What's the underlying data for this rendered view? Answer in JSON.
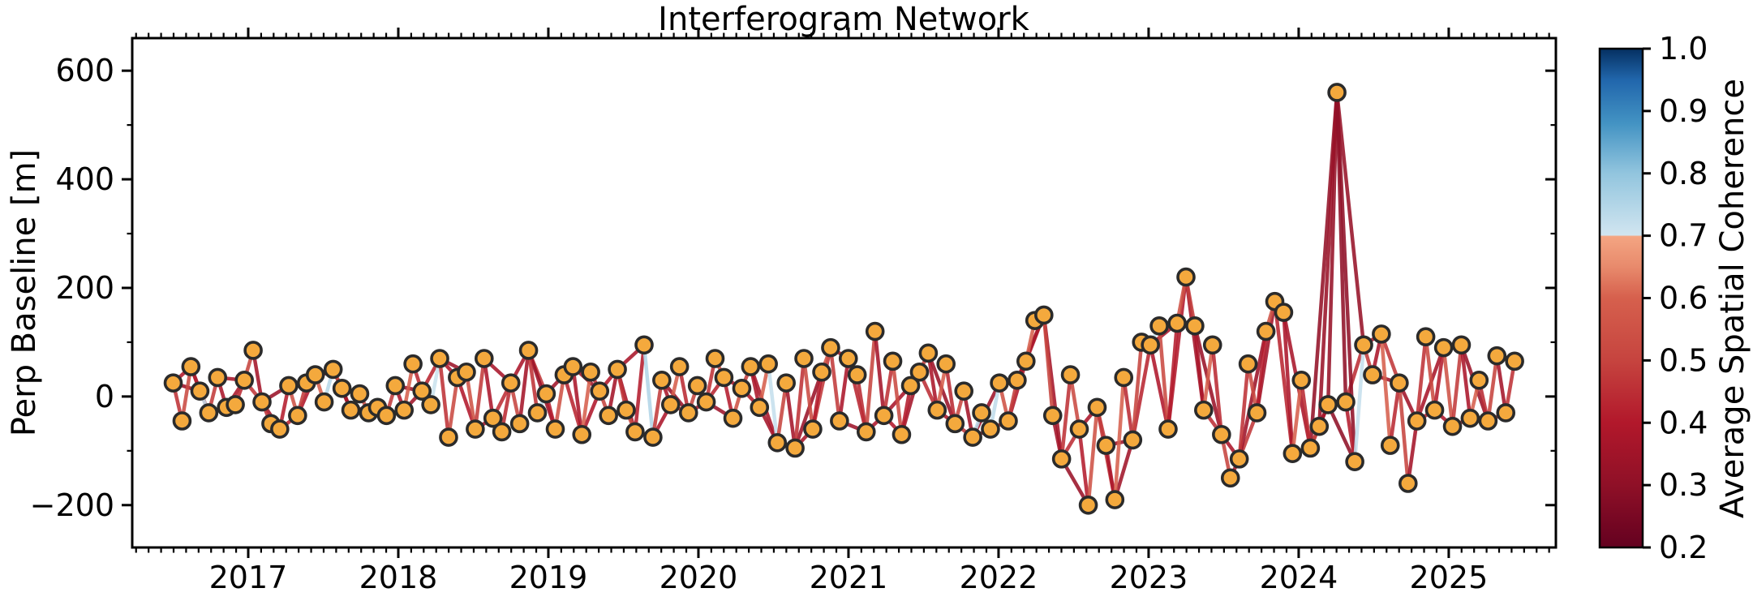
{
  "figure": {
    "title": "Interferogram Network",
    "background": "#ffffff"
  },
  "axes": {
    "ylabel": "Perp Baseline [m]",
    "yticks": {
      "values": [
        -200,
        0,
        200,
        400,
        600
      ],
      "labels": [
        "−200",
        "0",
        "200",
        "400",
        "600"
      ]
    },
    "xticks": {
      "values": [
        2017,
        2018,
        2019,
        2020,
        2021,
        2022,
        2023,
        2024,
        2025
      ],
      "labels": [
        "2017",
        "2018",
        "2019",
        "2020",
        "2021",
        "2022",
        "2023",
        "2024",
        "2025"
      ]
    }
  },
  "colorbar": {
    "label": "Average Spatial Coherence",
    "vmin": 0.2,
    "vmax": 1.0,
    "ticks": {
      "values": [
        0.2,
        0.3,
        0.4,
        0.5,
        0.6,
        0.7,
        0.8,
        0.9,
        1.0
      ],
      "labels": [
        "0.2",
        "0.3",
        "0.4",
        "0.5",
        "0.6",
        "0.7",
        "0.8",
        "0.9",
        "1.0"
      ]
    }
  },
  "chart_data": {
    "type": "scatter",
    "subtype": "interferogram-network",
    "title": "Interferogram Network",
    "xlabel": "",
    "ylabel": "Perp Baseline [m]",
    "xlim": [
      2016.227,
      2025.714
    ],
    "ylim": [
      -278,
      660
    ],
    "minor_x_interval_years": 0.08333,
    "minor_y_interval_m": 100,
    "grid": false,
    "legend": "colorbar-right",
    "marker": {
      "fill": "#F4A93D",
      "stroke": "#2B2B2B"
    },
    "colormap_stops": [
      [
        0.2,
        "#640120"
      ],
      [
        0.3,
        "#8F1027"
      ],
      [
        0.4,
        "#B2182B"
      ],
      [
        0.5,
        "#C6443F"
      ],
      [
        0.6,
        "#D6604D"
      ],
      [
        0.65,
        "#E88A6C"
      ],
      [
        0.699,
        "#F4A582"
      ],
      [
        0.701,
        "#D1E5F0"
      ],
      [
        0.8,
        "#92C5DE"
      ],
      [
        0.88,
        "#4393C3"
      ],
      [
        0.95,
        "#2166AC"
      ],
      [
        1.0,
        "#053061"
      ]
    ],
    "x": [
      2016.5,
      2016.559,
      2016.618,
      2016.678,
      2016.737,
      2016.796,
      2016.855,
      2016.914,
      2016.974,
      2017.033,
      2017.092,
      2017.151,
      2017.21,
      2017.27,
      2017.329,
      2017.388,
      2017.447,
      2017.506,
      2017.566,
      2017.625,
      2017.684,
      2017.743,
      2017.802,
      2017.862,
      2017.921,
      2017.98,
      2018.039,
      2018.098,
      2018.158,
      2018.217,
      2018.276,
      2018.335,
      2018.394,
      2018.454,
      2018.513,
      2018.572,
      2018.631,
      2018.69,
      2018.75,
      2018.809,
      2018.868,
      2018.927,
      2018.986,
      2019.046,
      2019.105,
      2019.164,
      2019.223,
      2019.282,
      2019.342,
      2019.401,
      2019.46,
      2019.519,
      2019.578,
      2019.638,
      2019.697,
      2019.756,
      2019.815,
      2019.874,
      2019.934,
      2019.993,
      2020.052,
      2020.111,
      2020.17,
      2020.23,
      2020.289,
      2020.348,
      2020.407,
      2020.466,
      2020.526,
      2020.585,
      2020.644,
      2020.703,
      2020.762,
      2020.822,
      2020.881,
      2020.94,
      2020.999,
      2021.058,
      2021.118,
      2021.177,
      2021.236,
      2021.295,
      2021.354,
      2021.414,
      2021.473,
      2021.532,
      2021.591,
      2021.65,
      2021.71,
      2021.769,
      2021.828,
      2021.887,
      2021.946,
      2022.006,
      2022.065,
      2022.124,
      2022.183,
      2022.242,
      2022.302,
      2022.361,
      2022.42,
      2022.479,
      2022.538,
      2022.598,
      2022.657,
      2022.716,
      2022.775,
      2022.834,
      2022.894,
      2022.953,
      2023.012,
      2023.071,
      2023.13,
      2023.19,
      2023.249,
      2023.308,
      2023.367,
      2023.426,
      2023.486,
      2023.545,
      2023.604,
      2023.663,
      2023.722,
      2023.782,
      2023.841,
      2023.9,
      2023.959,
      2024.018,
      2024.078,
      2024.137,
      2024.196,
      2024.255,
      2024.314,
      2024.374,
      2024.433,
      2024.492,
      2024.551,
      2024.61,
      2024.67,
      2024.729,
      2024.788,
      2024.847,
      2024.906,
      2024.966,
      2025.025,
      2025.084,
      2025.143,
      2025.202,
      2025.262,
      2025.321,
      2025.38,
      2025.439
    ],
    "y": [
      25,
      -45,
      55,
      10,
      -30,
      35,
      -20,
      -15,
      30,
      85,
      -10,
      -50,
      -60,
      20,
      -35,
      25,
      40,
      -10,
      50,
      15,
      -25,
      5,
      -30,
      -20,
      -35,
      20,
      -25,
      60,
      10,
      -15,
      70,
      -75,
      35,
      45,
      -60,
      70,
      -40,
      -65,
      25,
      -50,
      85,
      -30,
      5,
      -60,
      40,
      55,
      -70,
      45,
      10,
      -35,
      50,
      -25,
      -65,
      95,
      -75,
      30,
      -15,
      55,
      -30,
      20,
      -10,
      70,
      35,
      -40,
      15,
      55,
      -20,
      60,
      -85,
      25,
      -95,
      70,
      -60,
      45,
      90,
      -45,
      70,
      40,
      -65,
      120,
      -35,
      65,
      -70,
      20,
      45,
      80,
      -25,
      60,
      -50,
      10,
      -75,
      -30,
      -60,
      25,
      -45,
      30,
      65,
      140,
      150,
      -35,
      -115,
      40,
      -60,
      -200,
      -20,
      -90,
      -190,
      35,
      -80,
      100,
      95,
      130,
      -60,
      135,
      220,
      130,
      -25,
      95,
      -70,
      -150,
      -115,
      60,
      -30,
      120,
      175,
      155,
      -105,
      30,
      -95,
      -55,
      -15,
      560,
      -10,
      -120,
      95,
      40,
      115,
      -90,
      25,
      -160,
      -45,
      110,
      -25,
      90,
      -55,
      95,
      -40,
      30,
      -45,
      75,
      -30,
      65
    ],
    "seq_edge_coherence": [
      0.46,
      0.52,
      0.41,
      0.72,
      0.48,
      0.38,
      0.6,
      0.44,
      0.5,
      0.36,
      0.46,
      0.52,
      0.41,
      0.55,
      0.48,
      0.38,
      0.6,
      0.74,
      0.5,
      0.36,
      0.46,
      0.52,
      0.41,
      0.55,
      0.48,
      0.38,
      0.6,
      0.44,
      0.5,
      0.71,
      0.46,
      0.52,
      0.41,
      0.55,
      0.48,
      0.38,
      0.6,
      0.44,
      0.5,
      0.36,
      0.46,
      0.73,
      0.41,
      0.55,
      0.48,
      0.38,
      0.6,
      0.44,
      0.5,
      0.36,
      0.46,
      0.52,
      0.41,
      0.75,
      0.48,
      0.38,
      0.6,
      0.44,
      0.5,
      0.36,
      0.46,
      0.52,
      0.41,
      0.55,
      0.48,
      0.38,
      0.6,
      0.72,
      0.5,
      0.36,
      0.46,
      0.52,
      0.41,
      0.55,
      0.48,
      0.38,
      0.71,
      0.44,
      0.5,
      0.36,
      0.46,
      0.52,
      0.41,
      0.55,
      0.48,
      0.38,
      0.6,
      0.44,
      0.5,
      0.36,
      0.74,
      0.72,
      0.73,
      0.55,
      0.48,
      0.38,
      0.6,
      0.44,
      0.5,
      0.36,
      0.46,
      0.52,
      0.41,
      0.55,
      0.48,
      0.38,
      0.6,
      0.44,
      0.5,
      0.36,
      0.71,
      0.52,
      0.41,
      0.55,
      0.48,
      0.38,
      0.6,
      0.44,
      0.5,
      0.36,
      0.46,
      0.52,
      0.41,
      0.55,
      0.48,
      0.38,
      0.6,
      0.44,
      0.5,
      0.36,
      0.32,
      0.3,
      0.41,
      0.72,
      0.48,
      0.38,
      0.6,
      0.44,
      0.5,
      0.36,
      0.46,
      0.52,
      0.41,
      0.55,
      0.48,
      0.38,
      0.6,
      0.44,
      0.5,
      0.36,
      0.46
    ],
    "pair_edges": [
      [
        0,
        2,
        0.4
      ],
      [
        2,
        4,
        0.36
      ],
      [
        4,
        6,
        0.45
      ],
      [
        6,
        8,
        0.38
      ],
      [
        8,
        10,
        0.47
      ],
      [
        10,
        12,
        0.35
      ],
      [
        12,
        14,
        0.43
      ],
      [
        14,
        16,
        0.39
      ],
      [
        16,
        18,
        0.4
      ],
      [
        18,
        20,
        0.36
      ],
      [
        20,
        22,
        0.45
      ],
      [
        22,
        24,
        0.38
      ],
      [
        24,
        26,
        0.47
      ],
      [
        26,
        28,
        0.35
      ],
      [
        28,
        30,
        0.43
      ],
      [
        30,
        32,
        0.39
      ],
      [
        32,
        34,
        0.4
      ],
      [
        34,
        36,
        0.36
      ],
      [
        36,
        38,
        0.45
      ],
      [
        38,
        40,
        0.38
      ],
      [
        40,
        42,
        0.47
      ],
      [
        42,
        44,
        0.35
      ],
      [
        44,
        46,
        0.43
      ],
      [
        46,
        48,
        0.39
      ],
      [
        48,
        50,
        0.4
      ],
      [
        50,
        52,
        0.36
      ],
      [
        52,
        54,
        0.45
      ],
      [
        54,
        56,
        0.38
      ],
      [
        56,
        58,
        0.47
      ],
      [
        58,
        60,
        0.35
      ],
      [
        60,
        62,
        0.43
      ],
      [
        62,
        64,
        0.39
      ],
      [
        64,
        66,
        0.4
      ],
      [
        66,
        68,
        0.36
      ],
      [
        68,
        70,
        0.45
      ],
      [
        70,
        72,
        0.38
      ],
      [
        72,
        74,
        0.47
      ],
      [
        74,
        76,
        0.35
      ],
      [
        76,
        78,
        0.43
      ],
      [
        78,
        80,
        0.39
      ],
      [
        80,
        82,
        0.4
      ],
      [
        82,
        84,
        0.36
      ],
      [
        84,
        86,
        0.45
      ],
      [
        86,
        88,
        0.38
      ],
      [
        88,
        90,
        0.47
      ],
      [
        90,
        92,
        0.35
      ],
      [
        92,
        94,
        0.43
      ],
      [
        94,
        96,
        0.39
      ],
      [
        96,
        98,
        0.4
      ],
      [
        98,
        100,
        0.36
      ],
      [
        100,
        102,
        0.45
      ],
      [
        102,
        104,
        0.38
      ],
      [
        104,
        106,
        0.47
      ],
      [
        106,
        108,
        0.35
      ],
      [
        108,
        110,
        0.43
      ],
      [
        110,
        112,
        0.39
      ],
      [
        112,
        114,
        0.4
      ],
      [
        114,
        116,
        0.36
      ],
      [
        116,
        118,
        0.45
      ],
      [
        118,
        120,
        0.38
      ],
      [
        120,
        122,
        0.47
      ],
      [
        122,
        124,
        0.35
      ],
      [
        124,
        126,
        0.43
      ],
      [
        126,
        128,
        0.39
      ],
      [
        128,
        130,
        0.4
      ],
      [
        130,
        132,
        0.31
      ],
      [
        132,
        134,
        0.45
      ],
      [
        134,
        136,
        0.38
      ],
      [
        136,
        138,
        0.47
      ],
      [
        138,
        140,
        0.35
      ],
      [
        140,
        142,
        0.43
      ],
      [
        142,
        144,
        0.39
      ],
      [
        144,
        146,
        0.4
      ],
      [
        146,
        148,
        0.36
      ],
      [
        148,
        150,
        0.45
      ],
      [
        0,
        3,
        0.34
      ],
      [
        5,
        8,
        0.37
      ],
      [
        10,
        13,
        0.33
      ],
      [
        15,
        18,
        0.34
      ],
      [
        20,
        23,
        0.37
      ],
      [
        25,
        28,
        0.33
      ],
      [
        30,
        33,
        0.34
      ],
      [
        35,
        38,
        0.37
      ],
      [
        40,
        43,
        0.33
      ],
      [
        45,
        48,
        0.34
      ],
      [
        50,
        53,
        0.37
      ],
      [
        55,
        58,
        0.33
      ],
      [
        60,
        63,
        0.34
      ],
      [
        65,
        68,
        0.37
      ],
      [
        70,
        73,
        0.33
      ],
      [
        75,
        78,
        0.34
      ],
      [
        80,
        83,
        0.37
      ],
      [
        85,
        88,
        0.33
      ],
      [
        90,
        93,
        0.34
      ],
      [
        95,
        98,
        0.37
      ],
      [
        100,
        103,
        0.33
      ],
      [
        105,
        108,
        0.34
      ],
      [
        110,
        113,
        0.37
      ],
      [
        115,
        118,
        0.33
      ],
      [
        120,
        123,
        0.34
      ],
      [
        125,
        128,
        0.37
      ],
      [
        130,
        133,
        0.3
      ],
      [
        135,
        138,
        0.34
      ],
      [
        140,
        143,
        0.37
      ],
      [
        145,
        148,
        0.33
      ],
      [
        128,
        131,
        0.31
      ],
      [
        129,
        131,
        0.33
      ],
      [
        131,
        133,
        0.3
      ],
      [
        131,
        134,
        0.32
      ]
    ]
  }
}
